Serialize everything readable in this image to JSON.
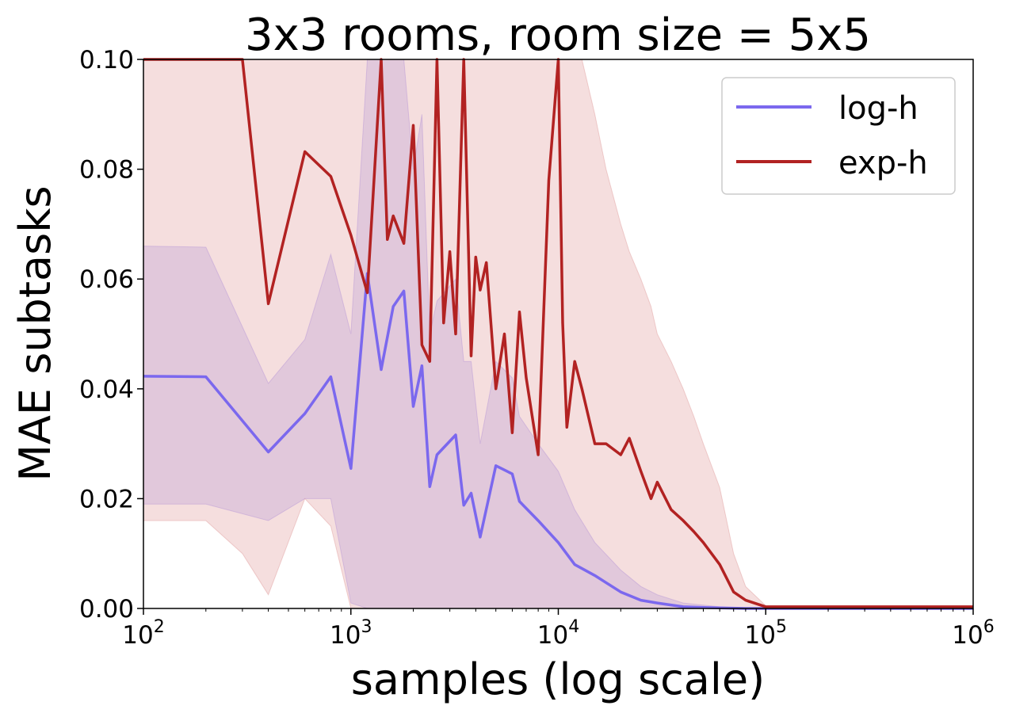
{
  "chart_data": {
    "type": "line",
    "title": "3x3 rooms, room size = 5x5",
    "xlabel": "samples (log scale)",
    "ylabel": "MAE subtasks",
    "xscale": "log",
    "xlim": [
      100,
      1000000
    ],
    "ylim": [
      0,
      0.1
    ],
    "y_ticks": [
      "0.00",
      "0.02",
      "0.04",
      "0.06",
      "0.08",
      "0.10"
    ],
    "x_ticks": [
      {
        "base": "10",
        "exp": "2"
      },
      {
        "base": "10",
        "exp": "3"
      },
      {
        "base": "10",
        "exp": "4"
      },
      {
        "base": "10",
        "exp": "5"
      },
      {
        "base": "10",
        "exp": "6"
      }
    ],
    "legend": {
      "placement": "top-right"
    },
    "grid": false,
    "series": [
      {
        "name": "log-h",
        "color": "#7b68ee",
        "band_color": "#7b68ee",
        "x": [
          100,
          200,
          400,
          600,
          800,
          1000,
          1200,
          1400,
          1600,
          1800,
          2000,
          2200,
          2400,
          2600,
          3200,
          3500,
          3800,
          4200,
          5000,
          6000,
          6500,
          8000,
          10000,
          12000,
          15000,
          20000,
          25000,
          30000,
          40000,
          60000,
          80000,
          100000,
          1000000
        ],
        "y": [
          0.0423,
          0.0422,
          0.0285,
          0.0355,
          0.0422,
          0.0255,
          0.061,
          0.0435,
          0.055,
          0.0578,
          0.0368,
          0.0442,
          0.0222,
          0.028,
          0.0316,
          0.0188,
          0.021,
          0.013,
          0.026,
          0.0245,
          0.0195,
          0.016,
          0.012,
          0.008,
          0.006,
          0.003,
          0.0015,
          0.001,
          0.0003,
          0.0001,
          0.0,
          0.0,
          0.0
        ],
        "lower": [
          0.019,
          0.019,
          0.016,
          0.02,
          0.02,
          0.001,
          0.0,
          0.0,
          0.0,
          0.0,
          0.0,
          0.0,
          0.0,
          0.0,
          0.0,
          0.0,
          0.0,
          0.0,
          0.0,
          0.0,
          0.0,
          0.0,
          0.0,
          0.0,
          0.0,
          0.0,
          0.0,
          0.0,
          0.0,
          0.0,
          0.0,
          0.0,
          0.0
        ],
        "upper": [
          0.066,
          0.0658,
          0.041,
          0.049,
          0.0645,
          0.05,
          0.1,
          0.1,
          0.1,
          0.1,
          0.08,
          0.09,
          0.05,
          0.056,
          0.06,
          0.045,
          0.045,
          0.03,
          0.045,
          0.042,
          0.035,
          0.03,
          0.025,
          0.018,
          0.012,
          0.007,
          0.004,
          0.0025,
          0.001,
          0.0003,
          0.0,
          0.0,
          0.0
        ]
      },
      {
        "name": "exp-h",
        "color": "#b22222",
        "band_color": "#cd5c5c",
        "x": [
          100,
          200,
          300,
          400,
          600,
          800,
          1000,
          1200,
          1400,
          1500,
          1600,
          1800,
          2000,
          2200,
          2400,
          2600,
          2800,
          3000,
          3200,
          3500,
          3800,
          4000,
          4200,
          4500,
          5000,
          5500,
          6000,
          6500,
          7000,
          8000,
          9000,
          10000,
          10500,
          11000,
          12000,
          13000,
          15000,
          17000,
          20000,
          22000,
          25000,
          28000,
          30000,
          35000,
          40000,
          45000,
          50000,
          60000,
          70000,
          80000,
          100000,
          1000000
        ],
        "y": [
          0.1,
          0.1,
          0.1,
          0.0555,
          0.0832,
          0.0787,
          0.068,
          0.0575,
          0.1,
          0.0672,
          0.0715,
          0.0665,
          0.088,
          0.048,
          0.045,
          0.1,
          0.052,
          0.065,
          0.05,
          0.1,
          0.046,
          0.064,
          0.058,
          0.063,
          0.04,
          0.05,
          0.032,
          0.054,
          0.042,
          0.028,
          0.078,
          0.1,
          0.052,
          0.033,
          0.045,
          0.04,
          0.03,
          0.03,
          0.028,
          0.031,
          0.025,
          0.02,
          0.023,
          0.018,
          0.016,
          0.014,
          0.012,
          0.008,
          0.003,
          0.0015,
          0.0003,
          0.0003
        ],
        "lower": [
          0.016,
          0.016,
          0.01,
          0.0025,
          0.02,
          0.015,
          0.0,
          0.0,
          0.0,
          0.0,
          0.0,
          0.0,
          0.0,
          0.0,
          0.0,
          0.0,
          0.0,
          0.0,
          0.0,
          0.0,
          0.0,
          0.0,
          0.0,
          0.0,
          0.0,
          0.0,
          0.0,
          0.0,
          0.0,
          0.0,
          0.0,
          0.0,
          0.0,
          0.0,
          0.0,
          0.0,
          0.0,
          0.0,
          0.0,
          0.0,
          0.0,
          0.0,
          0.0,
          0.0,
          0.0,
          0.0,
          0.0,
          0.0,
          0.0,
          0.0,
          0.0,
          0.0
        ],
        "upper": [
          0.1,
          0.1,
          0.1,
          0.1,
          0.1,
          0.1,
          0.1,
          0.1,
          0.1,
          0.1,
          0.1,
          0.1,
          0.1,
          0.1,
          0.1,
          0.1,
          0.1,
          0.1,
          0.1,
          0.1,
          0.1,
          0.1,
          0.1,
          0.1,
          0.1,
          0.1,
          0.1,
          0.1,
          0.1,
          0.1,
          0.1,
          0.1,
          0.1,
          0.1,
          0.1,
          0.1,
          0.09,
          0.08,
          0.07,
          0.065,
          0.06,
          0.055,
          0.05,
          0.045,
          0.04,
          0.035,
          0.03,
          0.022,
          0.01,
          0.004,
          0.0005,
          0.0005
        ]
      }
    ]
  }
}
